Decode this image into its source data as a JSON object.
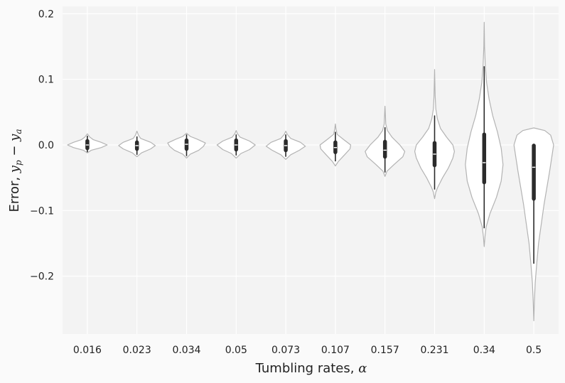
{
  "chart_data": {
    "type": "violin",
    "xlabel_text": "Tumbling rates, ",
    "xlabel_symbol": "α",
    "ylabel_text": "Error, ",
    "ylabel_symbol": "y",
    "ylabel_sub1": "p",
    "ylabel_minus": " − ",
    "ylabel_sub2": "a",
    "categories": [
      "0.016",
      "0.023",
      "0.034",
      "0.05",
      "0.073",
      "0.107",
      "0.157",
      "0.231",
      "0.34",
      "0.5"
    ],
    "yticks": [
      0.2,
      0.1,
      0.0,
      -0.1,
      -0.2
    ],
    "ytick_labels": [
      "0.2",
      "0.1",
      "0.0",
      "−0.1",
      "−0.2"
    ],
    "ylim": [
      -0.29,
      0.21
    ],
    "grid": true,
    "violins": [
      {
        "min": -0.012,
        "max": 0.017,
        "q1": -0.005,
        "median": 0.0,
        "q3": 0.006,
        "whisker_low": -0.011,
        "whisker_high": 0.014,
        "width": 0.8,
        "shape": [
          [
            -0.012,
            0.0
          ],
          [
            -0.008,
            0.2
          ],
          [
            -0.004,
            0.7
          ],
          [
            0.0,
            1.0
          ],
          [
            0.004,
            0.7
          ],
          [
            0.008,
            0.3
          ],
          [
            0.012,
            0.12
          ],
          [
            0.017,
            0.0
          ]
        ]
      },
      {
        "min": -0.018,
        "max": 0.021,
        "q1": -0.006,
        "median": -0.001,
        "q3": 0.004,
        "whisker_low": -0.015,
        "whisker_high": 0.013,
        "width": 0.74,
        "shape": [
          [
            -0.018,
            0.0
          ],
          [
            -0.012,
            0.25
          ],
          [
            -0.006,
            0.75
          ],
          [
            -0.001,
            1.0
          ],
          [
            0.004,
            0.75
          ],
          [
            0.01,
            0.2
          ],
          [
            0.015,
            0.08
          ],
          [
            0.021,
            0.0
          ]
        ]
      },
      {
        "min": -0.02,
        "max": 0.018,
        "q1": -0.006,
        "median": 0.001,
        "q3": 0.007,
        "whisker_low": -0.017,
        "whisker_high": 0.016,
        "width": 0.76,
        "shape": [
          [
            -0.02,
            0.0
          ],
          [
            -0.014,
            0.2
          ],
          [
            -0.008,
            0.65
          ],
          [
            -0.002,
            0.9
          ],
          [
            0.003,
            1.0
          ],
          [
            0.009,
            0.55
          ],
          [
            0.013,
            0.2
          ],
          [
            0.018,
            0.0
          ]
        ]
      },
      {
        "min": -0.02,
        "max": 0.022,
        "q1": -0.007,
        "median": 0.0,
        "q3": 0.007,
        "whisker_low": -0.016,
        "whisker_high": 0.016,
        "width": 0.77,
        "shape": [
          [
            -0.02,
            0.0
          ],
          [
            -0.013,
            0.25
          ],
          [
            -0.007,
            0.7
          ],
          [
            0.0,
            1.0
          ],
          [
            0.006,
            0.7
          ],
          [
            0.012,
            0.2
          ],
          [
            0.017,
            0.07
          ],
          [
            0.022,
            0.0
          ]
        ]
      },
      {
        "min": -0.022,
        "max": 0.021,
        "q1": -0.008,
        "median": -0.001,
        "q3": 0.006,
        "whisker_low": -0.018,
        "whisker_high": 0.016,
        "width": 0.79,
        "shape": [
          [
            -0.022,
            0.0
          ],
          [
            -0.015,
            0.25
          ],
          [
            -0.008,
            0.7
          ],
          [
            -0.002,
            1.0
          ],
          [
            0.004,
            0.75
          ],
          [
            0.01,
            0.25
          ],
          [
            0.016,
            0.08
          ],
          [
            0.021,
            0.0
          ]
        ]
      },
      {
        "min": -0.032,
        "max": 0.032,
        "q1": -0.011,
        "median": -0.004,
        "q3": 0.004,
        "whisker_low": -0.025,
        "whisker_high": 0.02,
        "width": 0.62,
        "shape": [
          [
            -0.032,
            0.0
          ],
          [
            -0.025,
            0.2
          ],
          [
            -0.015,
            0.6
          ],
          [
            -0.006,
            0.95
          ],
          [
            0.0,
            1.0
          ],
          [
            0.008,
            0.55
          ],
          [
            0.016,
            0.12
          ],
          [
            0.024,
            0.04
          ],
          [
            0.032,
            0.0
          ]
        ]
      },
      {
        "min": -0.048,
        "max": 0.059,
        "q1": -0.018,
        "median": -0.008,
        "q3": 0.005,
        "whisker_low": -0.042,
        "whisker_high": 0.027,
        "width": 0.8,
        "shape": [
          [
            -0.048,
            0.0
          ],
          [
            -0.04,
            0.1
          ],
          [
            -0.03,
            0.45
          ],
          [
            -0.018,
            0.9
          ],
          [
            -0.01,
            1.0
          ],
          [
            0.0,
            0.75
          ],
          [
            0.012,
            0.35
          ],
          [
            0.022,
            0.12
          ],
          [
            0.032,
            0.04
          ],
          [
            0.045,
            0.02
          ],
          [
            0.059,
            0.0
          ]
        ]
      },
      {
        "min": -0.082,
        "max": 0.115,
        "q1": -0.031,
        "median": -0.014,
        "q3": 0.003,
        "whisker_low": -0.068,
        "whisker_high": 0.045,
        "width": 0.8,
        "shape": [
          [
            -0.082,
            0.0
          ],
          [
            -0.072,
            0.06
          ],
          [
            -0.065,
            0.15
          ],
          [
            -0.05,
            0.4
          ],
          [
            -0.035,
            0.7
          ],
          [
            -0.02,
            0.92
          ],
          [
            -0.01,
            1.0
          ],
          [
            0.0,
            0.92
          ],
          [
            0.012,
            0.6
          ],
          [
            0.025,
            0.3
          ],
          [
            0.04,
            0.14
          ],
          [
            0.055,
            0.06
          ],
          [
            0.075,
            0.03
          ],
          [
            0.095,
            0.015
          ],
          [
            0.115,
            0.0
          ]
        ]
      },
      {
        "min": -0.155,
        "max": 0.187,
        "q1": -0.057,
        "median": -0.027,
        "q3": 0.016,
        "whisker_low": -0.127,
        "whisker_high": 0.12,
        "width": 0.76,
        "shape": [
          [
            -0.155,
            0.0
          ],
          [
            -0.14,
            0.04
          ],
          [
            -0.125,
            0.1
          ],
          [
            -0.105,
            0.3
          ],
          [
            -0.08,
            0.65
          ],
          [
            -0.055,
            0.9
          ],
          [
            -0.03,
            1.0
          ],
          [
            -0.005,
            0.9
          ],
          [
            0.02,
            0.7
          ],
          [
            0.045,
            0.45
          ],
          [
            0.07,
            0.26
          ],
          [
            0.095,
            0.13
          ],
          [
            0.12,
            0.06
          ],
          [
            0.15,
            0.02
          ],
          [
            0.187,
            0.0
          ]
        ]
      },
      {
        "min": -0.268,
        "max": 0.026,
        "q1": -0.082,
        "median": -0.034,
        "q3": -0.001,
        "whisker_low": -0.181,
        "whisker_high": 0.0,
        "width": 0.8,
        "shape": [
          [
            -0.268,
            0.0
          ],
          [
            -0.24,
            0.03
          ],
          [
            -0.21,
            0.07
          ],
          [
            -0.18,
            0.15
          ],
          [
            -0.15,
            0.24
          ],
          [
            -0.12,
            0.38
          ],
          [
            -0.09,
            0.52
          ],
          [
            -0.065,
            0.66
          ],
          [
            -0.04,
            0.8
          ],
          [
            -0.02,
            0.9
          ],
          [
            0.0,
            1.0
          ],
          [
            0.015,
            0.85
          ],
          [
            0.022,
            0.55
          ],
          [
            0.026,
            0.0
          ]
        ]
      }
    ]
  }
}
